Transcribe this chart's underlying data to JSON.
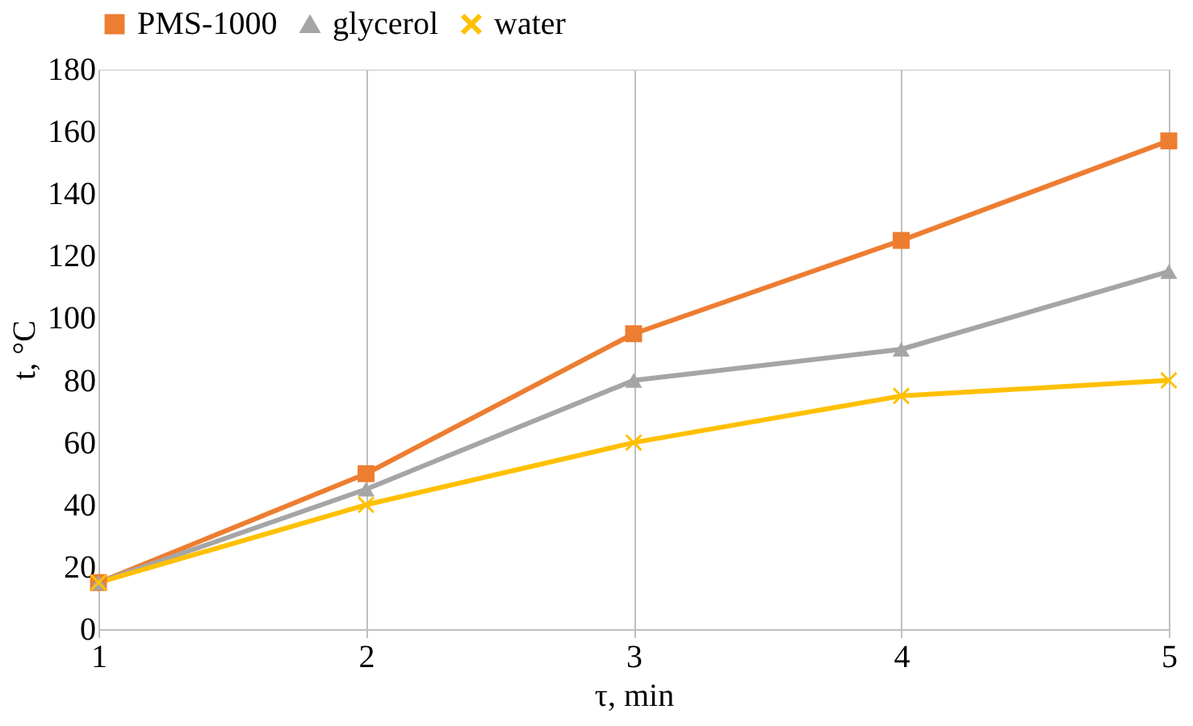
{
  "chart_data": {
    "type": "line",
    "xlabel": "τ, min",
    "ylabel": "t, °C",
    "x": [
      1,
      2,
      3,
      4,
      5
    ],
    "xlim": [
      1,
      5
    ],
    "xticks": [
      1,
      2,
      3,
      4,
      5
    ],
    "ylim": [
      0,
      180
    ],
    "yticks": [
      0,
      20,
      40,
      60,
      80,
      100,
      120,
      140,
      160,
      180
    ],
    "grid": "x",
    "legend": "top",
    "line_style": "solid",
    "series": [
      {
        "name": "PMS-1000",
        "color": "#ed7d31",
        "marker": "square",
        "values": [
          15,
          50,
          95,
          125,
          157
        ]
      },
      {
        "name": "glycerol",
        "color": "#a5a5a5",
        "marker": "triangle",
        "values": [
          15,
          45,
          80,
          90,
          115
        ]
      },
      {
        "name": "water",
        "color": "#ffc000",
        "marker": "cross",
        "values": [
          15,
          40,
          60,
          75,
          80
        ]
      }
    ]
  }
}
